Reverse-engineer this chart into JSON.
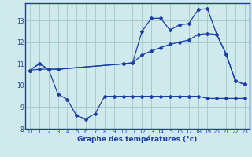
{
  "xlabel": "Graphe des températures (°c)",
  "bg_color": "#cfe9ec",
  "line_color": "#1a3faa",
  "grid_color": "#aacccc",
  "xlim": [
    -0.5,
    23.5
  ],
  "ylim": [
    8,
    13.8
  ],
  "yticks": [
    8,
    9,
    10,
    11,
    12,
    13
  ],
  "xticks": [
    0,
    1,
    2,
    3,
    4,
    5,
    6,
    7,
    8,
    9,
    10,
    11,
    12,
    13,
    14,
    15,
    16,
    17,
    18,
    19,
    20,
    21,
    22,
    23
  ],
  "series": [
    {
      "x": [
        0,
        1,
        2,
        3,
        4,
        5,
        6,
        7,
        8,
        9,
        10,
        11,
        12,
        13,
        14,
        15,
        16,
        17,
        18,
        19,
        20,
        21,
        22,
        23
      ],
      "y": [
        10.7,
        10.75,
        10.75,
        9.6,
        9.35,
        8.6,
        8.45,
        8.7,
        9.5,
        9.5,
        9.5,
        9.5,
        9.5,
        9.5,
        9.5,
        9.5,
        9.5,
        9.5,
        9.5,
        9.4,
        9.4,
        9.4,
        9.4,
        9.4
      ]
    },
    {
      "x": [
        0,
        1,
        2,
        3,
        10,
        11,
        12,
        13,
        14,
        15,
        16,
        17,
        18,
        19,
        20,
        21,
        22,
        23
      ],
      "y": [
        10.7,
        11.0,
        10.75,
        10.75,
        11.0,
        11.05,
        11.4,
        11.6,
        11.75,
        11.9,
        12.0,
        12.1,
        12.35,
        12.4,
        12.35,
        11.45,
        10.2,
        10.05
      ]
    },
    {
      "x": [
        0,
        1,
        2,
        3,
        10,
        11,
        12,
        13,
        14,
        15,
        16,
        17,
        18,
        19,
        20,
        21,
        22,
        23
      ],
      "y": [
        10.7,
        11.0,
        10.75,
        10.75,
        11.0,
        11.05,
        12.5,
        13.1,
        13.1,
        12.55,
        12.8,
        12.85,
        13.5,
        13.55,
        12.35,
        11.45,
        10.2,
        10.05
      ]
    }
  ]
}
